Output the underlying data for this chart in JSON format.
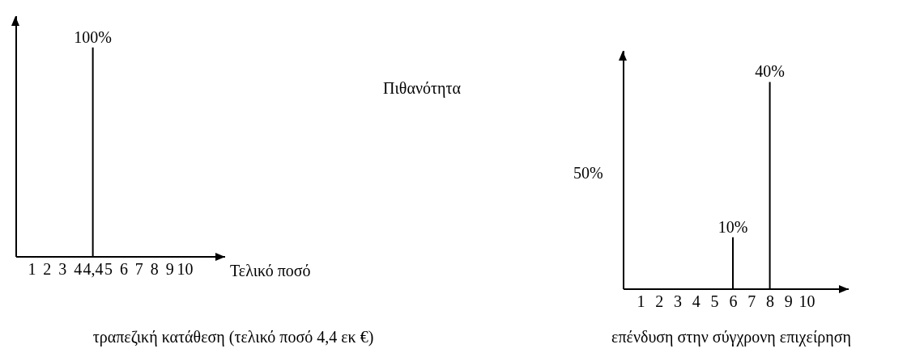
{
  "chart_data": [
    {
      "type": "bar",
      "title": "τραπεζική κατάθεση (τελικό ποσό 4,4 εκ €)",
      "xlabel": "Τελικό ποσό",
      "categories": [
        "1",
        "2",
        "3",
        "4",
        "4,4",
        "5",
        "6",
        "7",
        "8",
        "9",
        "10"
      ],
      "values": [
        null,
        null,
        null,
        null,
        100,
        null,
        null,
        null,
        null,
        null,
        null
      ],
      "value_labels": [
        null,
        null,
        null,
        null,
        "100%",
        null,
        null,
        null,
        null,
        null,
        null
      ],
      "color": "#000000"
    },
    {
      "type": "bar",
      "title": "επένδυση στην σύγχρονη επιχείρηση",
      "ylabel": "Πιθανότητα",
      "annotations": [
        "50%"
      ],
      "categories": [
        "1",
        "2",
        "3",
        "4",
        "5",
        "6",
        "7",
        "8",
        "9",
        "10"
      ],
      "values": [
        null,
        null,
        null,
        null,
        null,
        10,
        null,
        40,
        null,
        null
      ],
      "value_labels": [
        null,
        null,
        null,
        null,
        null,
        "10%",
        null,
        "40%",
        null,
        null
      ],
      "color": "#000000"
    }
  ]
}
